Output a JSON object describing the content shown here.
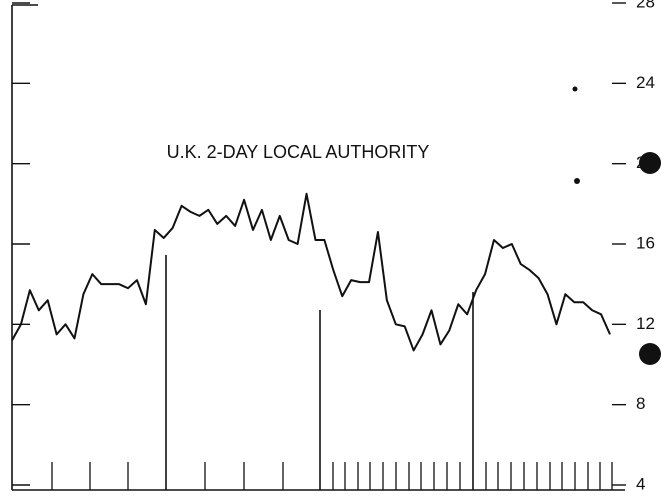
{
  "chart_data": {
    "type": "line",
    "title": "U.K. 2-DAY LOCAL AUTHORITY",
    "categories": [
      null,
      null,
      null,
      null,
      null,
      null,
      null,
      null,
      null,
      null,
      null,
      null,
      null,
      null,
      null,
      null,
      null,
      null,
      null,
      null,
      null,
      null,
      null,
      null,
      null,
      null,
      null,
      null,
      null,
      null,
      null,
      null,
      null,
      null,
      null,
      null,
      null,
      null,
      null,
      null,
      null,
      null,
      null,
      null,
      null,
      null,
      null,
      null,
      null,
      null,
      null,
      null,
      null,
      null,
      null,
      null,
      null,
      null,
      null,
      null,
      null,
      null,
      null,
      null,
      null,
      null,
      null,
      null
    ],
    "series": [
      {
        "color": "#111111",
        "values": [
          11.2,
          12,
          13.7,
          12.7,
          13.2,
          11.5,
          12,
          11.3,
          13.5,
          14.5,
          14,
          14,
          14,
          13.8,
          14.2,
          13,
          16.7,
          16.3,
          16.8,
          17.9,
          17.6,
          17.4,
          17.7,
          17,
          17.4,
          16.9,
          18.2,
          16.7,
          17.7,
          16.2,
          17.4,
          16.2,
          16,
          18.5,
          16.2,
          16.2,
          14.7,
          13.4,
          14.2,
          14.1,
          14.1,
          16.6,
          13.2,
          12,
          11.9,
          10.7,
          11.5,
          12.7,
          11,
          11.7,
          13,
          12.5,
          13.7,
          14.5,
          16.2,
          15.8,
          16,
          15,
          14.7,
          14.3,
          13.5,
          12,
          13.5,
          13.1,
          13.1,
          12.7,
          12.5,
          11.5
        ]
      }
    ],
    "ylim": [
      4,
      28
    ],
    "yticks": [
      4,
      8,
      12,
      16,
      20,
      24,
      28
    ]
  }
}
